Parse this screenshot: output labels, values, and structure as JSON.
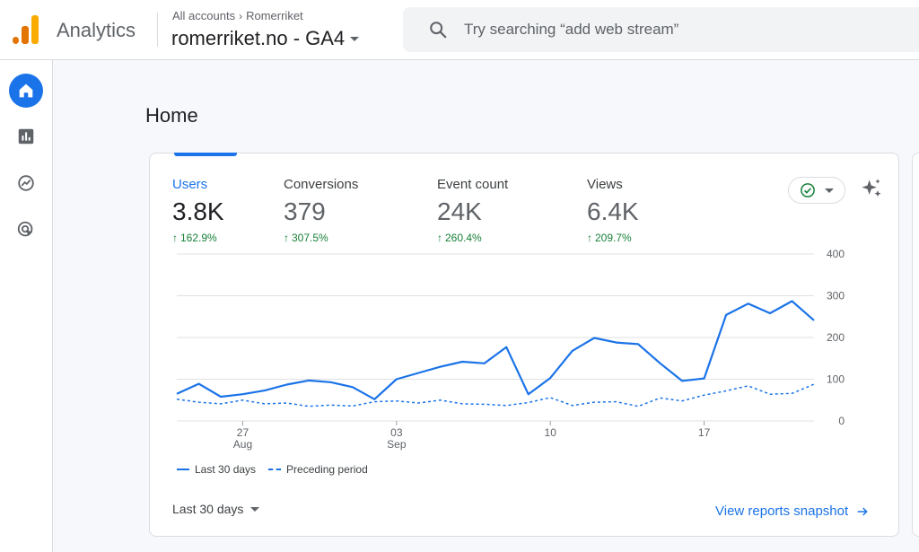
{
  "header": {
    "app_name": "Analytics",
    "breadcrumb_root": "All accounts",
    "breadcrumb_account": "Romerriket",
    "property_name": "romerriket.no - GA4",
    "search_placeholder": "Try searching “add web stream”"
  },
  "sidebar": {
    "items": [
      {
        "icon": "home-icon",
        "active": true
      },
      {
        "icon": "reports-icon",
        "active": false
      },
      {
        "icon": "explore-icon",
        "active": false
      },
      {
        "icon": "advertising-icon",
        "active": false
      }
    ]
  },
  "page": {
    "title": "Home"
  },
  "metrics": [
    {
      "label": "Users",
      "value": "3.8K",
      "change": "162.9%",
      "active": true
    },
    {
      "label": "Conversions",
      "value": "379",
      "change": "307.5%",
      "active": false
    },
    {
      "label": "Event count",
      "value": "24K",
      "change": "260.4%",
      "active": false
    },
    {
      "label": "Views",
      "value": "6.4K",
      "change": "209.7%",
      "active": false
    }
  ],
  "chart_data": {
    "type": "line",
    "x_ticks": [
      {
        "day": "27",
        "month": "Aug"
      },
      {
        "day": "03",
        "month": "Sep"
      },
      {
        "day": "10",
        "month": ""
      },
      {
        "day": "17",
        "month": ""
      }
    ],
    "y_ticks": [
      "400",
      "300",
      "200",
      "100",
      "0"
    ],
    "ylim": [
      0,
      400
    ],
    "series": [
      {
        "name": "Last 30 days",
        "style": "solid",
        "values": [
          65,
          89,
          58,
          64,
          73,
          87,
          97,
          93,
          81,
          52,
          100,
          115,
          130,
          142,
          138,
          177,
          64,
          103,
          168,
          199,
          188,
          184,
          138,
          96,
          102,
          254,
          281,
          258,
          287,
          241
        ]
      },
      {
        "name": "Preceding period",
        "style": "dashed",
        "values": [
          52,
          45,
          41,
          50,
          41,
          43,
          35,
          38,
          36,
          46,
          48,
          43,
          50,
          41,
          40,
          37,
          44,
          56,
          37,
          45,
          46,
          35,
          55,
          48,
          62,
          72,
          84,
          64,
          66,
          88
        ]
      }
    ],
    "colors": {
      "line": "#1a73e8",
      "grid": "#e0e0e0"
    }
  },
  "footer": {
    "range_label": "Last 30 days",
    "view_link": "View reports snapshot"
  }
}
